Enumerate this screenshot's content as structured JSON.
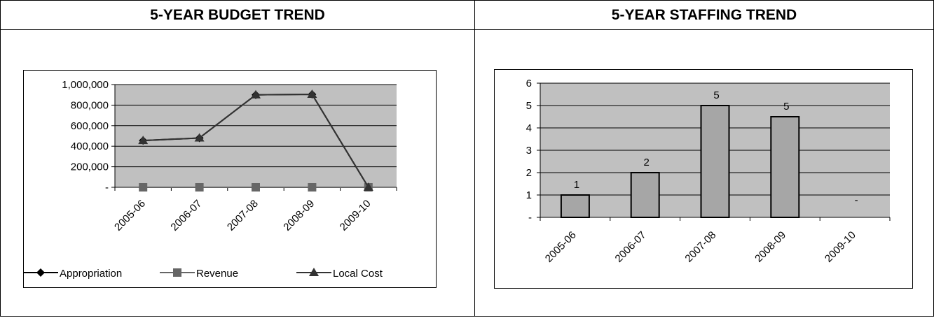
{
  "budget": {
    "title": "5-YEAR BUDGET TREND",
    "chart_data": {
      "type": "line",
      "categories": [
        "2005-06",
        "2006-07",
        "2007-08",
        "2008-09",
        "2009-10"
      ],
      "ylim": [
        0,
        1000000
      ],
      "yticks": [
        0,
        200000,
        400000,
        600000,
        800000,
        1000000
      ],
      "ytick_labels": [
        "-",
        "200,000",
        "400,000",
        "600,000",
        "800,000",
        "1,000,000"
      ],
      "series": [
        {
          "name": "Appropriation",
          "values": [
            455000,
            480000,
            900000,
            905000,
            0
          ],
          "color": "#000000",
          "marker": "diamond"
        },
        {
          "name": "Revenue",
          "values": [
            0,
            0,
            0,
            0,
            0
          ],
          "color": "#666666",
          "marker": "square"
        },
        {
          "name": "Local Cost",
          "values": [
            455000,
            480000,
            900000,
            905000,
            0
          ],
          "color": "#333333",
          "marker": "triangle"
        }
      ],
      "grid": true,
      "legend": "bottom"
    }
  },
  "staffing": {
    "title": "5-YEAR STAFFING TREND",
    "chart_data": {
      "type": "bar",
      "categories": [
        "2005-06",
        "2006-07",
        "2007-08",
        "2008-09",
        "2009-10"
      ],
      "values": [
        1,
        2,
        5,
        4.5,
        0
      ],
      "data_labels": [
        "1",
        "2",
        "5",
        "5",
        "-"
      ],
      "ylim": [
        0,
        6
      ],
      "yticks": [
        0,
        1,
        2,
        3,
        4,
        5,
        6
      ],
      "ytick_labels": [
        "-",
        "1",
        "2",
        "3",
        "4",
        "5",
        "6"
      ],
      "grid": true,
      "bar_color": "#a6a6a6"
    }
  }
}
